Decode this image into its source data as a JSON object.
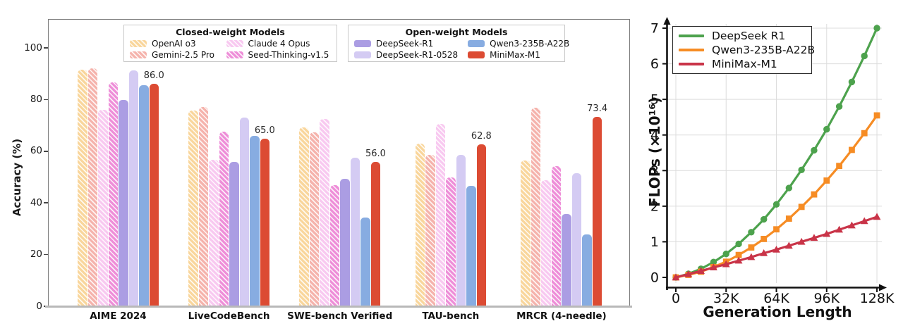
{
  "chart_data": [
    {
      "type": "bar",
      "ylabel": "Accuracy (%)",
      "ylim": [
        0,
        111
      ],
      "y_ticks": [
        0,
        20,
        40,
        60,
        80,
        100
      ],
      "grid": false,
      "categories": [
        "AIME 2024",
        "LiveCodeBench",
        "SWE-bench Verified",
        "TAU-bench",
        "MRCR (4-needle)"
      ],
      "legend_groups": [
        {
          "title": "Closed-weight Models",
          "series": [
            "OpenAI o3",
            "Gemini-2.5 Pro",
            "Claude 4 Opus",
            "Seed-Thinking-v1.5"
          ]
        },
        {
          "title": "Open-weight Models",
          "series": [
            "DeepSeek-R1",
            "DeepSeek-R1-0528",
            "Qwen3-235B-A22B",
            "MiniMax-M1"
          ]
        }
      ],
      "series": [
        {
          "name": "OpenAI o3",
          "color": "#F9D69C",
          "hatch": true,
          "values": [
            91.6,
            75.8,
            69.1,
            63.0,
            56.5
          ]
        },
        {
          "name": "Gemini-2.5 Pro",
          "color": "#F5B3AC",
          "hatch": true,
          "values": [
            92.0,
            77.1,
            67.2,
            58.5,
            76.8
          ]
        },
        {
          "name": "Claude 4 Opus",
          "color": "#F8C9F0",
          "hatch": true,
          "values": [
            76.0,
            56.6,
            72.5,
            70.5,
            48.9
          ]
        },
        {
          "name": "Seed-Thinking-v1.5",
          "color": "#EE8ED8",
          "hatch": true,
          "values": [
            86.7,
            67.5,
            47.0,
            49.9,
            54.3
          ]
        },
        {
          "name": "DeepSeek-R1",
          "color": "#AB9DE3",
          "hatch": false,
          "values": [
            79.8,
            55.9,
            49.2,
            null,
            35.8
          ]
        },
        {
          "name": "DeepSeek-R1-0528",
          "color": "#D4CBF3",
          "hatch": false,
          "values": [
            91.4,
            73.1,
            57.6,
            58.7,
            51.5
          ]
        },
        {
          "name": "Qwen3-235B-A22B",
          "color": "#87ACE1",
          "hatch": false,
          "values": [
            85.7,
            65.9,
            34.4,
            46.7,
            27.7
          ]
        },
        {
          "name": "MiniMax-M1",
          "color": "#DC4B33",
          "hatch": false,
          "values": [
            86.0,
            65.0,
            56.0,
            62.8,
            73.4
          ]
        }
      ],
      "value_labels": {
        "series": "MiniMax-M1",
        "values": [
          "86.0",
          "65.0",
          "56.0",
          "62.8",
          "73.4"
        ]
      }
    },
    {
      "type": "line",
      "xlabel": "Generation Length",
      "ylabel": "FLOPs (×10¹⁶)",
      "xlim": [
        0,
        131
      ],
      "ylim": [
        0,
        7.3
      ],
      "x_ticks": [
        {
          "value": 0,
          "label": "0"
        },
        {
          "value": 32,
          "label": "32K"
        },
        {
          "value": 64,
          "label": "64K"
        },
        {
          "value": 96,
          "label": "96K"
        },
        {
          "value": 128,
          "label": "128K"
        }
      ],
      "y_ticks": [
        0,
        1,
        2,
        3,
        4,
        5,
        6,
        7
      ],
      "grid": true,
      "legend_position": "top-left",
      "x": [
        0,
        8,
        16,
        24,
        32,
        40,
        48,
        56,
        64,
        72,
        80,
        88,
        96,
        104,
        112,
        120,
        128
      ],
      "series": [
        {
          "name": "DeepSeek R1",
          "color": "#4DA24D",
          "marker": "circle",
          "values": [
            0,
            0.1,
            0.24,
            0.43,
            0.66,
            0.94,
            1.27,
            1.63,
            2.05,
            2.51,
            3.02,
            3.57,
            4.16,
            4.8,
            5.49,
            6.22,
            7.0
          ]
        },
        {
          "name": "Qwen3-235B-A22B",
          "color": "#F68C24",
          "marker": "square",
          "values": [
            0,
            0.07,
            0.16,
            0.29,
            0.44,
            0.63,
            0.84,
            1.08,
            1.35,
            1.65,
            1.98,
            2.33,
            2.72,
            3.13,
            3.58,
            4.05,
            4.55
          ]
        },
        {
          "name": "MiniMax-M1",
          "color": "#C93448",
          "marker": "triangle",
          "values": [
            0,
            0.09,
            0.18,
            0.28,
            0.37,
            0.47,
            0.57,
            0.68,
            0.78,
            0.89,
            1.0,
            1.11,
            1.22,
            1.34,
            1.46,
            1.58,
            1.7
          ]
        }
      ]
    }
  ]
}
